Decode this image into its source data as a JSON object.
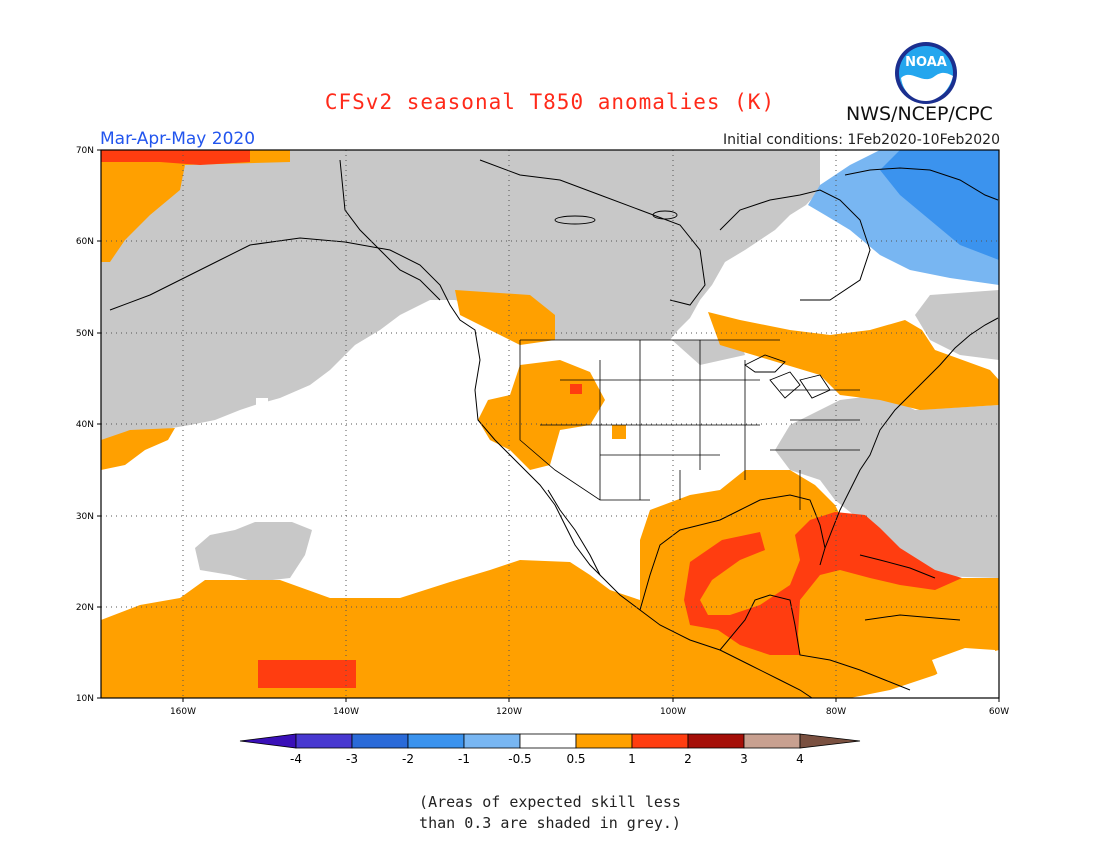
{
  "title": "CFSv2 seasonal T850 anomalies (K)",
  "agency": "NWS/NCEP/CPC",
  "logo_text": "NOAA",
  "season_label": "Mar-Apr-May 2020",
  "initial_conditions": "Initial conditions: 1Feb2020-10Feb2020",
  "note": "(Areas of expected skill less\nthan 0.3 are shaded in grey.)",
  "map": {
    "lon_range": [
      -170,
      -60
    ],
    "lat_range": [
      10,
      70
    ],
    "lat_labels": [
      "70N",
      "60N",
      "50N",
      "40N",
      "30N",
      "20N",
      "10N"
    ],
    "lon_labels": [
      "160W",
      "140W",
      "120W",
      "100W",
      "80W",
      "60W"
    ]
  },
  "colorbar": {
    "labels": [
      "-4",
      "-3",
      "-2",
      "-1",
      "-0.5",
      "0.5",
      "1",
      "2",
      "3",
      "4"
    ],
    "colors": [
      "#3a10b8",
      "#4838d0",
      "#2a6ad8",
      "#3b93ee",
      "#78b6f2",
      "#ffffff",
      "#ffa000",
      "#ff3d10",
      "#a50f08",
      "#c8a090",
      "#7a5040"
    ]
  },
  "colors": {
    "grey_low_skill": "#c8c8c8",
    "anom_0_5_1": "#ffa000",
    "anom_1_2": "#ff3d10",
    "anom_neg_0_5_1": "#78b6f2",
    "anom_neg_1_2": "#3b93ee",
    "neutral": "#ffffff"
  }
}
